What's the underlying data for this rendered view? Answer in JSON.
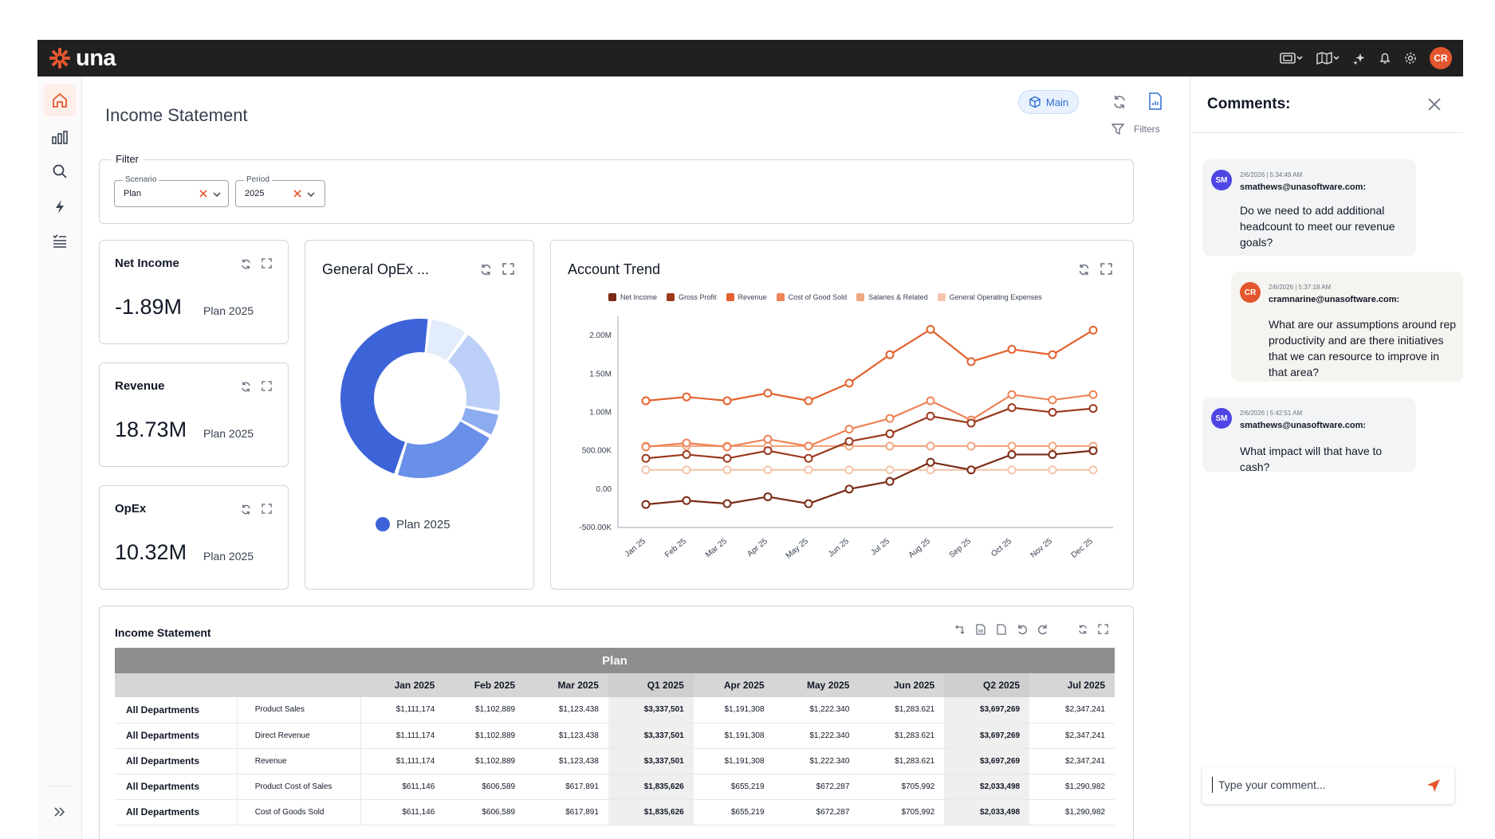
{
  "app": {
    "name": "una",
    "user_initials": "CR"
  },
  "topbar": {
    "icons": [
      "layout-switch-icon",
      "map-icon",
      "sparkle-icon",
      "bell-icon",
      "gear-icon"
    ]
  },
  "nav": {
    "items": [
      "home-icon",
      "bar-chart-icon",
      "search-icon",
      "lightning-icon",
      "task-list-icon"
    ],
    "expand": "double-chevron-right-icon"
  },
  "header": {
    "title": "Income Statement",
    "chip": "Main",
    "filters_label": "Filters"
  },
  "filter": {
    "legend": "Filter",
    "scenario": {
      "label": "Scenario",
      "value": "Plan"
    },
    "period": {
      "label": "Period",
      "value": "2025"
    }
  },
  "kpis": [
    {
      "title": "Net Income",
      "value": "-1.89M",
      "sub": "Plan 2025"
    },
    {
      "title": "Revenue",
      "value": "18.73M",
      "sub": "Plan 2025"
    },
    {
      "title": "OpEx",
      "value": "10.32M",
      "sub": "Plan 2025"
    }
  ],
  "opex_chart": {
    "title": "General OpEx ...",
    "legend": "Plan 2025"
  },
  "trend": {
    "title": "Account Trend"
  },
  "chart_data": [
    {
      "type": "pie",
      "title": "General OpEx ...",
      "series_name": "Plan 2025",
      "values": [
        8,
        18,
        5,
        22,
        47
      ],
      "colors": [
        "#e3ecfb",
        "#bcd0f7",
        "#8cacf1",
        "#6a8fe8",
        "#3d63d8"
      ]
    },
    {
      "type": "line",
      "title": "Account Trend",
      "categories": [
        "Jan 25",
        "Feb 25",
        "Mar 25",
        "Apr 25",
        "May 25",
        "Jun 25",
        "Jul 25",
        "Aug 25",
        "Sep 25",
        "Oct 25",
        "Nov 25",
        "Dec 25"
      ],
      "ylim": [
        -500000,
        2250000
      ],
      "yticks": [
        "2.00M",
        "1.50M",
        "1.00M",
        "500.00K",
        "0.00",
        "-500.00K"
      ],
      "grid": false,
      "legend_position": "top",
      "series": [
        {
          "name": "Net Income",
          "color": "#7a2a14",
          "values": [
            -200000,
            -150000,
            -190000,
            -100000,
            -190000,
            0,
            100000,
            350000,
            250000,
            450000,
            450000,
            500000
          ]
        },
        {
          "name": "Gross Profit",
          "color": "#9c3a1e",
          "values": [
            400000,
            450000,
            400000,
            500000,
            400000,
            620000,
            720000,
            950000,
            860000,
            1060000,
            1000000,
            1050000
          ]
        },
        {
          "name": "Revenue",
          "color": "#e2622f",
          "values": [
            1150000,
            1200000,
            1150000,
            1250000,
            1150000,
            1380000,
            1750000,
            2080000,
            1660000,
            1820000,
            1750000,
            2070000
          ]
        },
        {
          "name": "Cost of Good Sold",
          "color": "#ee8357",
          "values": [
            550000,
            600000,
            550000,
            650000,
            560000,
            780000,
            920000,
            1150000,
            900000,
            1230000,
            1160000,
            1230000
          ]
        },
        {
          "name": "Salaries & Related",
          "color": "#f0a882",
          "values": [
            560000,
            560000,
            560000,
            560000,
            560000,
            560000,
            560000,
            560000,
            560000,
            560000,
            560000,
            560000
          ]
        },
        {
          "name": "General Operating Expenses",
          "color": "#f5c5ae",
          "values": [
            250000,
            250000,
            250000,
            250000,
            250000,
            250000,
            250000,
            250000,
            250000,
            250000,
            250000,
            250000
          ]
        }
      ]
    }
  ],
  "table": {
    "title": "Income Statement",
    "group": "Plan",
    "columns": [
      "Jan 2025",
      "Feb 2025",
      "Mar 2025",
      "Q1 2025",
      "Apr 2025",
      "May 2025",
      "Jun 2025",
      "Q2 2025",
      "Jul 2025"
    ],
    "rows": [
      {
        "dept": "All Departments",
        "account": "Product Sales",
        "values": [
          "$1,111,174",
          "$1,102,889",
          "$1,123,438",
          "$3,337,501",
          "$1,191,308",
          "$1,222.340",
          "$1,283.621",
          "$3,697,269",
          "$2,347,241"
        ]
      },
      {
        "dept": "All Departments",
        "account": "Direct Revenue",
        "values": [
          "$1,111,174",
          "$1,102,889",
          "$1,123,438",
          "$3,337,501",
          "$1,191,308",
          "$1,222.340",
          "$1,283.621",
          "$3,697,269",
          "$2,347,241"
        ]
      },
      {
        "dept": "All Departments",
        "account": "Revenue",
        "values": [
          "$1,111,174",
          "$1,102,889",
          "$1,123,438",
          "$3,337,501",
          "$1,191,308",
          "$1,222.340",
          "$1,283.621",
          "$3,697,269",
          "$2,347,241"
        ]
      },
      {
        "dept": "All Departments",
        "account": "Product Cost of Sales",
        "values": [
          "$611,146",
          "$606,589",
          "$617,891",
          "$1,835,626",
          "$655,219",
          "$672,287",
          "$705,992",
          "$2,033,498",
          "$1,290,982"
        ]
      },
      {
        "dept": "All Departments",
        "account": "Cost of Goods Sold",
        "values": [
          "$611,146",
          "$606,589",
          "$617,891",
          "$1,835,626",
          "$655,219",
          "$672,287",
          "$705,992",
          "$2,033,498",
          "$1,290,982"
        ]
      }
    ]
  },
  "comments": {
    "title": "Comments:",
    "input_placeholder": "Type your comment...",
    "items": [
      {
        "initials": "SM",
        "color": "#4f46e5",
        "time": "2/6/2026 | 5:34:49 AM",
        "user": "smathews@unasoftware.com:",
        "text": "Do we need to add additional headcount to meet our revenue goals?"
      },
      {
        "initials": "CR",
        "color": "#e4572e",
        "time": "2/6/2026 | 5:37:18 AM",
        "user": "cramnarine@unasoftware.com:",
        "text": "What are our assumptions around rep productivity and are there initiatives that we can resource to improve in that area?"
      },
      {
        "initials": "SM",
        "color": "#4f46e5",
        "time": "2/6/2026 | 5:42:51 AM",
        "user": "smathews@unasoftware.com:",
        "text": "What impact will that have to cash?"
      }
    ]
  }
}
